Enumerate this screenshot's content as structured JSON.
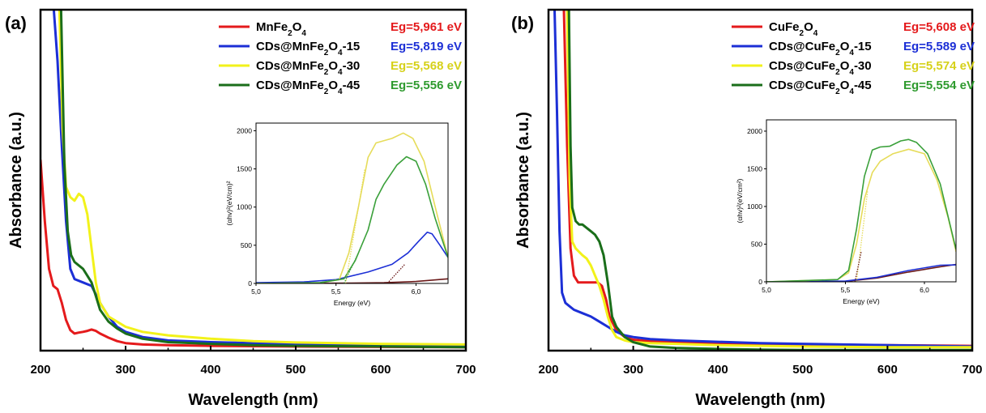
{
  "colors": {
    "red": "#e41a1c",
    "blue": "#1c2fd6",
    "yellow": "#f2f21a",
    "green": "#1a6e1a",
    "eg_yellow": "#d6d11a",
    "eg_green": "#2e9a2e",
    "inset_dark": "#6b1a1a",
    "inset_green": "#3aa03a",
    "inset_yellow": "#e6dc5a"
  },
  "chart_data": [
    {
      "panel_label": "(a)",
      "type": "line",
      "xlabel": "Wavelength (nm)",
      "ylabel": "Absorbance (a.u.)",
      "xlim": [
        200,
        700
      ],
      "ylim": [
        0,
        1
      ],
      "xticks": [
        "200",
        "300",
        "400",
        "500",
        "600",
        "700"
      ],
      "legend_position": "top-right",
      "series": [
        {
          "name": "MnFe₂O₄",
          "eg": "Eg=5,961 eV",
          "color": "red",
          "x": [
            200,
            205,
            210,
            215,
            220,
            225,
            230,
            235,
            240,
            245,
            250,
            255,
            260,
            265,
            270,
            280,
            290,
            300,
            320,
            350,
            400,
            450,
            500,
            600,
            700
          ],
          "y": [
            0.56,
            0.38,
            0.24,
            0.19,
            0.18,
            0.14,
            0.09,
            0.06,
            0.05,
            0.053,
            0.055,
            0.058,
            0.062,
            0.058,
            0.05,
            0.038,
            0.028,
            0.022,
            0.018,
            0.016,
            0.014,
            0.013,
            0.012,
            0.011,
            0.01
          ]
        },
        {
          "name": "CDs@MnFe₂O₄-15",
          "eg": "Eg=5,819 eV",
          "color": "blue",
          "x": [
            215,
            220,
            225,
            230,
            235,
            240,
            250,
            260,
            270,
            280,
            290,
            300,
            320,
            350,
            400,
            450,
            500,
            600,
            700
          ],
          "y": [
            1.02,
            0.85,
            0.6,
            0.38,
            0.24,
            0.21,
            0.2,
            0.19,
            0.14,
            0.1,
            0.07,
            0.055,
            0.04,
            0.03,
            0.025,
            0.022,
            0.02,
            0.018,
            0.016
          ]
        },
        {
          "name": "CDs@MnFe₂O₄-30",
          "eg": "Eg=5,568 eV",
          "color": "yellow",
          "x": [
            222,
            226,
            230,
            235,
            240,
            245,
            250,
            255,
            260,
            265,
            270,
            280,
            290,
            300,
            320,
            350,
            400,
            450,
            500,
            600,
            700
          ],
          "y": [
            1.02,
            0.65,
            0.48,
            0.45,
            0.44,
            0.46,
            0.45,
            0.4,
            0.3,
            0.2,
            0.14,
            0.1,
            0.085,
            0.07,
            0.055,
            0.045,
            0.035,
            0.028,
            0.024,
            0.02,
            0.018
          ]
        },
        {
          "name": "CDs@MnFe₂O₄-45",
          "eg": "Eg=5,556 eV",
          "color": "green",
          "x": [
            224,
            228,
            232,
            236,
            240,
            245,
            250,
            255,
            260,
            265,
            270,
            280,
            290,
            300,
            320,
            350,
            400,
            450,
            500,
            600,
            700
          ],
          "y": [
            1.02,
            0.55,
            0.35,
            0.28,
            0.26,
            0.25,
            0.24,
            0.22,
            0.2,
            0.16,
            0.12,
            0.085,
            0.065,
            0.05,
            0.035,
            0.025,
            0.02,
            0.016,
            0.014,
            0.012,
            0.01
          ]
        }
      ],
      "inset": {
        "xlabel": "Energy (eV)",
        "ylabel": "(αhv)²(eV/cm)²",
        "xlim": [
          5.0,
          6.2
        ],
        "ylim": [
          0,
          2100
        ],
        "xticks": [
          "5,0",
          "5,5",
          "6,0"
        ],
        "yticks": [
          "0",
          "500",
          "1000",
          "1500",
          "2000"
        ],
        "series": [
          {
            "color": "inset_dark",
            "x": [
              5.0,
              5.3,
              5.6,
              5.8,
              6.0,
              6.2
            ],
            "y": [
              0,
              2,
              5,
              10,
              25,
              60
            ]
          },
          {
            "color": "blue",
            "x": [
              5.0,
              5.3,
              5.5,
              5.7,
              5.85,
              5.95,
              6.02,
              6.07,
              6.1,
              6.15,
              6.2
            ],
            "y": [
              10,
              20,
              50,
              150,
              250,
              400,
              560,
              670,
              650,
              500,
              340
            ]
          },
          {
            "color": "inset_yellow",
            "x": [
              5.0,
              5.4,
              5.52,
              5.58,
              5.64,
              5.7,
              5.75,
              5.85,
              5.92,
              5.98,
              6.05,
              6.12,
              6.2
            ],
            "y": [
              0,
              10,
              50,
              400,
              1000,
              1650,
              1840,
              1900,
              1970,
              1900,
              1600,
              1000,
              340
            ]
          },
          {
            "color": "inset_green",
            "x": [
              5.0,
              5.4,
              5.55,
              5.62,
              5.7,
              5.75,
              5.8,
              5.88,
              5.94,
              6.0,
              6.06,
              6.12,
              6.2
            ],
            "y": [
              0,
              10,
              60,
              300,
              700,
              1100,
              1300,
              1550,
              1660,
              1600,
              1300,
              850,
              340
            ]
          }
        ],
        "tangents": [
          {
            "color": "inset_yellow",
            "x": [
              5.56,
              5.68
            ],
            "y": [
              0,
              1500
            ]
          },
          {
            "color": "inset_green",
            "x": [
              5.55,
              5.64
            ],
            "y": [
              0,
              400
            ]
          },
          {
            "color": "inset_dark",
            "x": [
              5.82,
              5.93
            ],
            "y": [
              0,
              250
            ]
          }
        ]
      }
    },
    {
      "panel_label": "(b)",
      "type": "line",
      "xlabel": "Wavelength (nm)",
      "ylabel": "Absorbance (a.u.)",
      "xlim": [
        200,
        700
      ],
      "ylim": [
        0,
        1
      ],
      "xticks": [
        "200",
        "300",
        "400",
        "500",
        "600",
        "700"
      ],
      "legend_position": "top-right",
      "series": [
        {
          "name": "CuFe₂O₄",
          "eg": "Eg=5,608 eV",
          "color": "red",
          "x": [
            218,
            222,
            226,
            230,
            235,
            240,
            250,
            258,
            263,
            268,
            272,
            276,
            280,
            285,
            290,
            300,
            320,
            350,
            400,
            450,
            500,
            600,
            700
          ],
          "y": [
            1.02,
            0.6,
            0.3,
            0.22,
            0.2,
            0.2,
            0.2,
            0.2,
            0.19,
            0.15,
            0.1,
            0.08,
            0.06,
            0.05,
            0.04,
            0.032,
            0.028,
            0.025,
            0.022,
            0.02,
            0.018,
            0.016,
            0.014
          ]
        },
        {
          "name": "CDs@CuFe₂O₄-15",
          "eg": "Eg=5,589 eV",
          "color": "blue",
          "x": [
            207,
            210,
            213,
            216,
            220,
            225,
            230,
            240,
            250,
            260,
            270,
            280,
            290,
            300,
            320,
            350,
            400,
            450,
            500,
            600,
            700
          ],
          "y": [
            1.02,
            0.7,
            0.35,
            0.17,
            0.14,
            0.13,
            0.12,
            0.11,
            0.1,
            0.085,
            0.07,
            0.055,
            0.045,
            0.04,
            0.034,
            0.03,
            0.026,
            0.022,
            0.02,
            0.016,
            0.012
          ]
        },
        {
          "name": "CDs@CuFe₂O₄-30",
          "eg": "Eg=5,574 eV",
          "color": "yellow",
          "x": [
            222,
            225,
            228,
            232,
            236,
            240,
            245,
            250,
            255,
            260,
            265,
            270,
            275,
            280,
            290,
            300,
            320,
            350,
            400,
            450,
            500,
            600,
            700
          ],
          "y": [
            1.02,
            0.5,
            0.32,
            0.3,
            0.29,
            0.28,
            0.27,
            0.25,
            0.22,
            0.19,
            0.15,
            0.1,
            0.06,
            0.04,
            0.03,
            0.025,
            0.022,
            0.02,
            0.016,
            0.014,
            0.012,
            0.01,
            0.01
          ]
        },
        {
          "name": "CDs@CuFe₂O₄-45",
          "eg": "Eg=5,554 eV",
          "color": "green",
          "x": [
            224,
            226,
            228,
            232,
            236,
            240,
            245,
            250,
            255,
            260,
            265,
            270,
            275,
            280,
            290,
            300,
            320,
            350,
            400,
            450,
            500,
            600,
            700
          ],
          "y": [
            1.02,
            0.6,
            0.42,
            0.38,
            0.37,
            0.37,
            0.36,
            0.35,
            0.34,
            0.32,
            0.28,
            0.2,
            0.1,
            0.07,
            0.04,
            0.025,
            0.012,
            0.008,
            0.005,
            0.003,
            0.002,
            0.002,
            0.002
          ]
        }
      ],
      "inset": {
        "xlabel": "Energy (eV)",
        "ylabel": "(αhv)²(eV/cm²)",
        "xlim": [
          5.0,
          6.2
        ],
        "ylim": [
          0,
          2150
        ],
        "xticks": [
          "5,0",
          "5,5",
          "6,0"
        ],
        "yticks": [
          "0",
          "500",
          "1000",
          "1500",
          "2000"
        ],
        "series": [
          {
            "color": "inset_dark",
            "x": [
              5.0,
              5.5,
              5.7,
              5.9,
              6.1,
              6.2
            ],
            "y": [
              0,
              5,
              50,
              130,
              200,
              230
            ]
          },
          {
            "color": "blue",
            "x": [
              5.0,
              5.5,
              5.7,
              5.9,
              6.1,
              6.2
            ],
            "y": [
              0,
              10,
              60,
              150,
              220,
              225
            ]
          },
          {
            "color": "inset_yellow",
            "x": [
              5.0,
              5.45,
              5.52,
              5.57,
              5.62,
              5.67,
              5.72,
              5.8,
              5.9,
              6.0,
              6.08,
              6.15,
              6.2
            ],
            "y": [
              0,
              30,
              120,
              500,
              1100,
              1450,
              1600,
              1700,
              1760,
              1700,
              1350,
              850,
              400
            ]
          },
          {
            "color": "inset_green",
            "x": [
              5.0,
              5.45,
              5.52,
              5.57,
              5.62,
              5.67,
              5.72,
              5.78,
              5.85,
              5.9,
              5.95,
              6.02,
              6.1,
              6.2
            ],
            "y": [
              0,
              30,
              150,
              700,
              1400,
              1750,
              1790,
              1800,
              1870,
              1890,
              1850,
              1700,
              1300,
              430
            ]
          }
        ],
        "tangents": [
          {
            "color": "inset_yellow",
            "x": [
              5.57,
              5.64
            ],
            "y": [
              0,
              1200
            ]
          },
          {
            "color": "inset_dark",
            "x": [
              5.56,
              5.6
            ],
            "y": [
              0,
              400
            ]
          }
        ]
      }
    }
  ]
}
